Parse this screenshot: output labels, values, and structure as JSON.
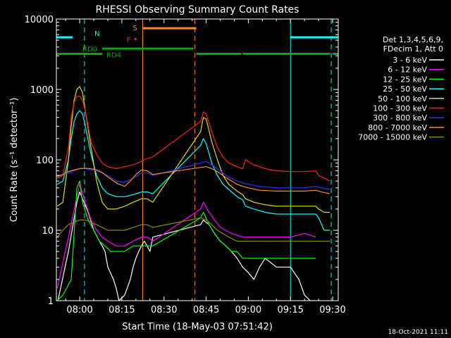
{
  "chart_data": {
    "type": "line",
    "title": "RHESSI Observing Summary Count Rates",
    "xlabel": "Start Time (18-May-03 07:51:42)",
    "ylabel": "Count Rate (s⁻¹ detector⁻¹)",
    "y_scale": "log",
    "ylim": [
      1,
      10000
    ],
    "xlim_minutes_from_0800": [
      -8.3,
      92
    ],
    "x_ticks": [
      {
        "label": "08:00",
        "min": 0
      },
      {
        "label": "08:15",
        "min": 15
      },
      {
        "label": "08:30",
        "min": 30
      },
      {
        "label": "08:45",
        "min": 45
      },
      {
        "label": "09:00",
        "min": 60
      },
      {
        "label": "09:15",
        "min": 75
      },
      {
        "label": "09:30",
        "min": 90
      }
    ],
    "y_ticks": [
      {
        "label": "1",
        "v": 1
      },
      {
        "label": "10",
        "v": 10
      },
      {
        "label": "100",
        "v": 100
      },
      {
        "label": "1000",
        "v": 1000
      },
      {
        "label": "10000",
        "v": 10000
      }
    ],
    "legend": {
      "placement": "right",
      "header": [
        "Det 1,3,4,5,6,9,",
        "FDecim 1, Att 0"
      ],
      "entries": [
        {
          "label": "3 - 6 keV",
          "color": "#ffffff"
        },
        {
          "label": "6 - 12 keV",
          "color": "#ff00ff"
        },
        {
          "label": "12 - 25 keV",
          "color": "#00ff00"
        },
        {
          "label": "25 - 50 keV",
          "color": "#00ffff"
        },
        {
          "label": "50 - 100 keV",
          "color": "#dddd22"
        },
        {
          "label": "100 - 300 keV",
          "color": "#ff2020"
        },
        {
          "label": "300 - 800 keV",
          "color": "#3030ff"
        },
        {
          "label": "800 - 7000 keV",
          "color": "#ff8c1a"
        },
        {
          "label": "7000 - 15000 keV",
          "color": "#8b8b00"
        }
      ]
    },
    "annotations": {
      "N": {
        "label": "N",
        "color": "#00ffff",
        "segments": [
          [
            -8.3,
            -2.5
          ],
          [
            75,
            92
          ]
        ],
        "level": 5500
      },
      "S": {
        "label": "S",
        "color": "#ff8c1a",
        "segments": [
          [
            22.4,
            41.5
          ]
        ],
        "level": 7400
      },
      "F": {
        "label": "F",
        "color": "#ff2020",
        "markers": [
          19.8
        ],
        "level": 5200
      },
      "RD0": {
        "label": "RD0",
        "color": "#00aa00",
        "segments": [
          [
            8,
            40.5
          ]
        ],
        "level": 3800
      },
      "RD4": {
        "label": "RD4",
        "color": "#00aa00",
        "segments": [
          [
            -8.3,
            8
          ],
          [
            41.5,
            57.5
          ],
          [
            58,
            89
          ],
          [
            90,
            92
          ]
        ],
        "level": 3200
      }
    },
    "vlines": [
      {
        "x": 1.7,
        "color": "#00ffff",
        "style": "dashed"
      },
      {
        "x": 75,
        "color": "#00ffff",
        "style": "solid"
      },
      {
        "x": 89.5,
        "color": "#00ffff",
        "style": "dashed"
      },
      {
        "x": -8.3,
        "color": "#00ffff",
        "style": "solid"
      },
      {
        "x": 22.4,
        "color": "#ff8c1a",
        "style": "solid"
      },
      {
        "x": 41,
        "color": "#ff8c1a",
        "style": "dashed"
      }
    ],
    "series": [
      {
        "name": "3 - 6 keV",
        "color": "#ffffff",
        "x": [
          -8,
          -4,
          -1,
          0,
          1,
          3,
          5,
          7,
          8,
          9,
          10,
          12,
          13,
          14,
          16,
          18,
          19,
          20,
          21,
          22,
          23,
          24,
          25,
          26,
          43,
          44,
          46,
          48,
          50,
          52,
          54,
          56,
          58,
          60,
          62,
          64,
          66,
          70,
          75,
          78,
          80,
          82,
          84
        ],
        "y": [
          0.9,
          5,
          25,
          35,
          28,
          18,
          10,
          7,
          6,
          5,
          3,
          2,
          1.5,
          1,
          1.2,
          2,
          3,
          4,
          5,
          6,
          7,
          6,
          5,
          8,
          12,
          14,
          12,
          9,
          7,
          6,
          5,
          4,
          3,
          2.5,
          2,
          3,
          4,
          3,
          3,
          2,
          1.2,
          1,
          1
        ]
      },
      {
        "name": "6 - 12 keV",
        "color": "#ff00ff",
        "x": [
          -8,
          -4,
          -1,
          0,
          2,
          4,
          6,
          8,
          10,
          13,
          16,
          19,
          22,
          24,
          26,
          43,
          44,
          46,
          48,
          50,
          54,
          58,
          60,
          64,
          70,
          75,
          80,
          84
        ],
        "y": [
          1.5,
          8,
          30,
          45,
          25,
          14,
          10,
          8,
          7,
          6,
          6,
          7,
          8,
          8,
          7,
          20,
          25,
          18,
          14,
          11,
          9,
          8,
          8,
          8,
          8,
          8,
          9,
          8
        ]
      },
      {
        "name": "12 - 25 keV",
        "color": "#00ff00",
        "x": [
          -8,
          -6,
          -3,
          -1,
          0,
          1,
          3,
          5,
          7,
          9,
          11,
          13,
          16,
          19,
          22,
          24,
          26,
          43,
          44,
          46,
          48,
          50,
          52,
          54,
          56,
          58,
          60,
          64,
          68,
          72,
          76,
          80,
          84
        ],
        "y": [
          1,
          1.2,
          2,
          40,
          50,
          25,
          14,
          10,
          7,
          6,
          5,
          5,
          5,
          6,
          6,
          6,
          6,
          15,
          18,
          12,
          9,
          7,
          6,
          5,
          5,
          4,
          4,
          4,
          4,
          4,
          4,
          4,
          4
        ]
      },
      {
        "name": "25 - 50 keV",
        "color": "#00ffff",
        "x": [
          -8,
          -6,
          -4,
          -3,
          -2,
          -1,
          0,
          1,
          2,
          4,
          6,
          8,
          10,
          13,
          16,
          19,
          22,
          24,
          26,
          43,
          44,
          45,
          47,
          49,
          51,
          53,
          56,
          58,
          59,
          62,
          66,
          70,
          75,
          80,
          84,
          85,
          87,
          89
        ],
        "y": [
          45,
          50,
          100,
          200,
          350,
          450,
          500,
          450,
          300,
          120,
          60,
          40,
          33,
          30,
          30,
          32,
          35,
          35,
          33,
          160,
          200,
          170,
          90,
          60,
          45,
          38,
          30,
          27,
          22,
          20,
          18,
          17,
          17,
          17,
          17,
          15,
          10,
          10
        ]
      },
      {
        "name": "50 - 100 keV",
        "color": "#dddd22",
        "x": [
          -8,
          -6,
          -4,
          -3,
          -2,
          -1,
          0,
          1,
          2,
          4,
          6,
          8,
          10,
          13,
          16,
          19,
          22,
          24,
          26,
          43,
          44,
          45,
          47,
          49,
          51,
          53,
          56,
          58,
          59,
          62,
          66,
          70,
          75,
          80,
          84,
          85,
          87,
          89
        ],
        "y": [
          22,
          25,
          100,
          300,
          700,
          1000,
          1100,
          900,
          500,
          150,
          50,
          25,
          20,
          20,
          22,
          25,
          28,
          28,
          25,
          250,
          400,
          380,
          180,
          100,
          60,
          45,
          36,
          32,
          28,
          25,
          23,
          22,
          22,
          22,
          22,
          20,
          18,
          18
        ]
      },
      {
        "name": "100 - 300 keV",
        "color": "#ff2020",
        "x": [
          -8,
          -6,
          -4,
          -3,
          -2,
          -1,
          0,
          1,
          2,
          3,
          4,
          6,
          8,
          10,
          13,
          16,
          19,
          22,
          24,
          26,
          43,
          44,
          45,
          47,
          49,
          51,
          53,
          56,
          58,
          59,
          62,
          66,
          70,
          75,
          80,
          84,
          85,
          87,
          89
        ],
        "y": [
          55,
          60,
          150,
          400,
          650,
          800,
          800,
          700,
          500,
          300,
          180,
          120,
          90,
          80,
          75,
          80,
          85,
          95,
          105,
          110,
          350,
          480,
          450,
          250,
          150,
          110,
          90,
          80,
          75,
          100,
          85,
          75,
          70,
          68,
          68,
          70,
          60,
          55,
          50
        ]
      },
      {
        "name": "300 - 800 keV",
        "color": "#3030ff",
        "x": [
          -8,
          -6,
          -4,
          -2,
          0,
          2,
          4,
          6,
          8,
          10,
          13,
          16,
          19,
          22,
          24,
          26,
          43,
          45,
          47,
          49,
          51,
          53,
          56,
          58,
          60,
          64,
          70,
          75,
          80,
          84,
          86,
          89
        ],
        "y": [
          60,
          62,
          65,
          70,
          75,
          75,
          72,
          70,
          65,
          60,
          50,
          48,
          55,
          65,
          65,
          60,
          90,
          95,
          85,
          75,
          65,
          57,
          50,
          47,
          45,
          42,
          40,
          40,
          40,
          42,
          40,
          38
        ]
      },
      {
        "name": "800 - 7000 keV",
        "color": "#ff8c1a",
        "x": [
          -8,
          -6,
          -4,
          -2,
          0,
          2,
          4,
          6,
          8,
          10,
          13,
          16,
          18,
          20,
          22,
          24,
          26,
          43,
          45,
          47,
          49,
          51,
          53,
          56,
          58,
          60,
          64,
          70,
          75,
          80,
          84,
          86,
          89
        ],
        "y": [
          58,
          62,
          68,
          72,
          75,
          76,
          75,
          72,
          66,
          57,
          47,
          42,
          50,
          62,
          72,
          70,
          62,
          78,
          80,
          75,
          68,
          60,
          53,
          45,
          42,
          40,
          37,
          36,
          36,
          36,
          37,
          35,
          33
        ]
      },
      {
        "name": "7000 - 15000 keV",
        "color": "#8b8b00",
        "x": [
          -8,
          -6,
          -4,
          -2,
          0,
          2,
          4,
          6,
          8,
          10,
          13,
          16,
          19,
          22,
          24,
          26,
          43,
          45,
          47,
          49,
          51,
          53,
          56,
          58,
          60,
          64,
          70,
          75,
          80,
          84,
          86,
          89
        ],
        "y": [
          8,
          10,
          12,
          13,
          14,
          14,
          13,
          12,
          11,
          10,
          10,
          10,
          11,
          12,
          12,
          11,
          15,
          14,
          12,
          10,
          9,
          8,
          7,
          7,
          7,
          7,
          7,
          7,
          7,
          7,
          7,
          7
        ]
      }
    ]
  },
  "footer": {
    "date_stamp": "18-Oct-2021 11:11"
  }
}
